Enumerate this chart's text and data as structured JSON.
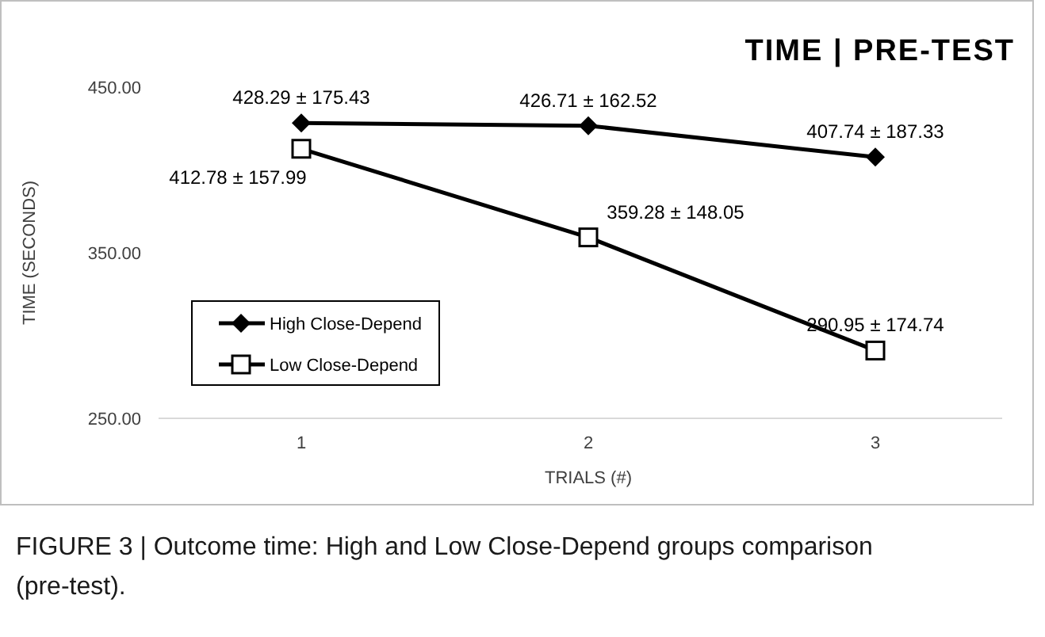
{
  "chart_data": {
    "type": "line",
    "title": "TIME | PRE-TEST",
    "xlabel": "TRIALS (#)",
    "ylabel": "TIME (SECONDS)",
    "categories": [
      "1",
      "2",
      "3"
    ],
    "series": [
      {
        "name": "High Close-Depend",
        "color": "#000000",
        "marker": "diamond",
        "values": [
          428.29,
          426.71,
          407.74
        ],
        "value_labels": [
          "428.29 ± 175.43",
          "426.71 ± 162.52",
          "407.74 ± 187.33"
        ]
      },
      {
        "name": "Low Close-Depend",
        "color": "#000000",
        "marker": "square",
        "values": [
          412.78,
          359.28,
          290.95
        ],
        "value_labels": [
          "412.78 ± 157.99",
          "359.28 ± 148.05",
          "290.95 ± 174.74"
        ]
      }
    ],
    "ylim": [
      250,
      450
    ],
    "yticks": [
      {
        "value": 250,
        "label": "250.00"
      },
      {
        "value": 350,
        "label": "350.00"
      },
      {
        "value": 450,
        "label": "450.00"
      }
    ],
    "grid": false,
    "legend": "bottom left",
    "line_style": "solid",
    "annotations": [
      "FIGURE 3 | Outcome time: High and Low Close-Depend groups comparison (pre-test)."
    ]
  }
}
